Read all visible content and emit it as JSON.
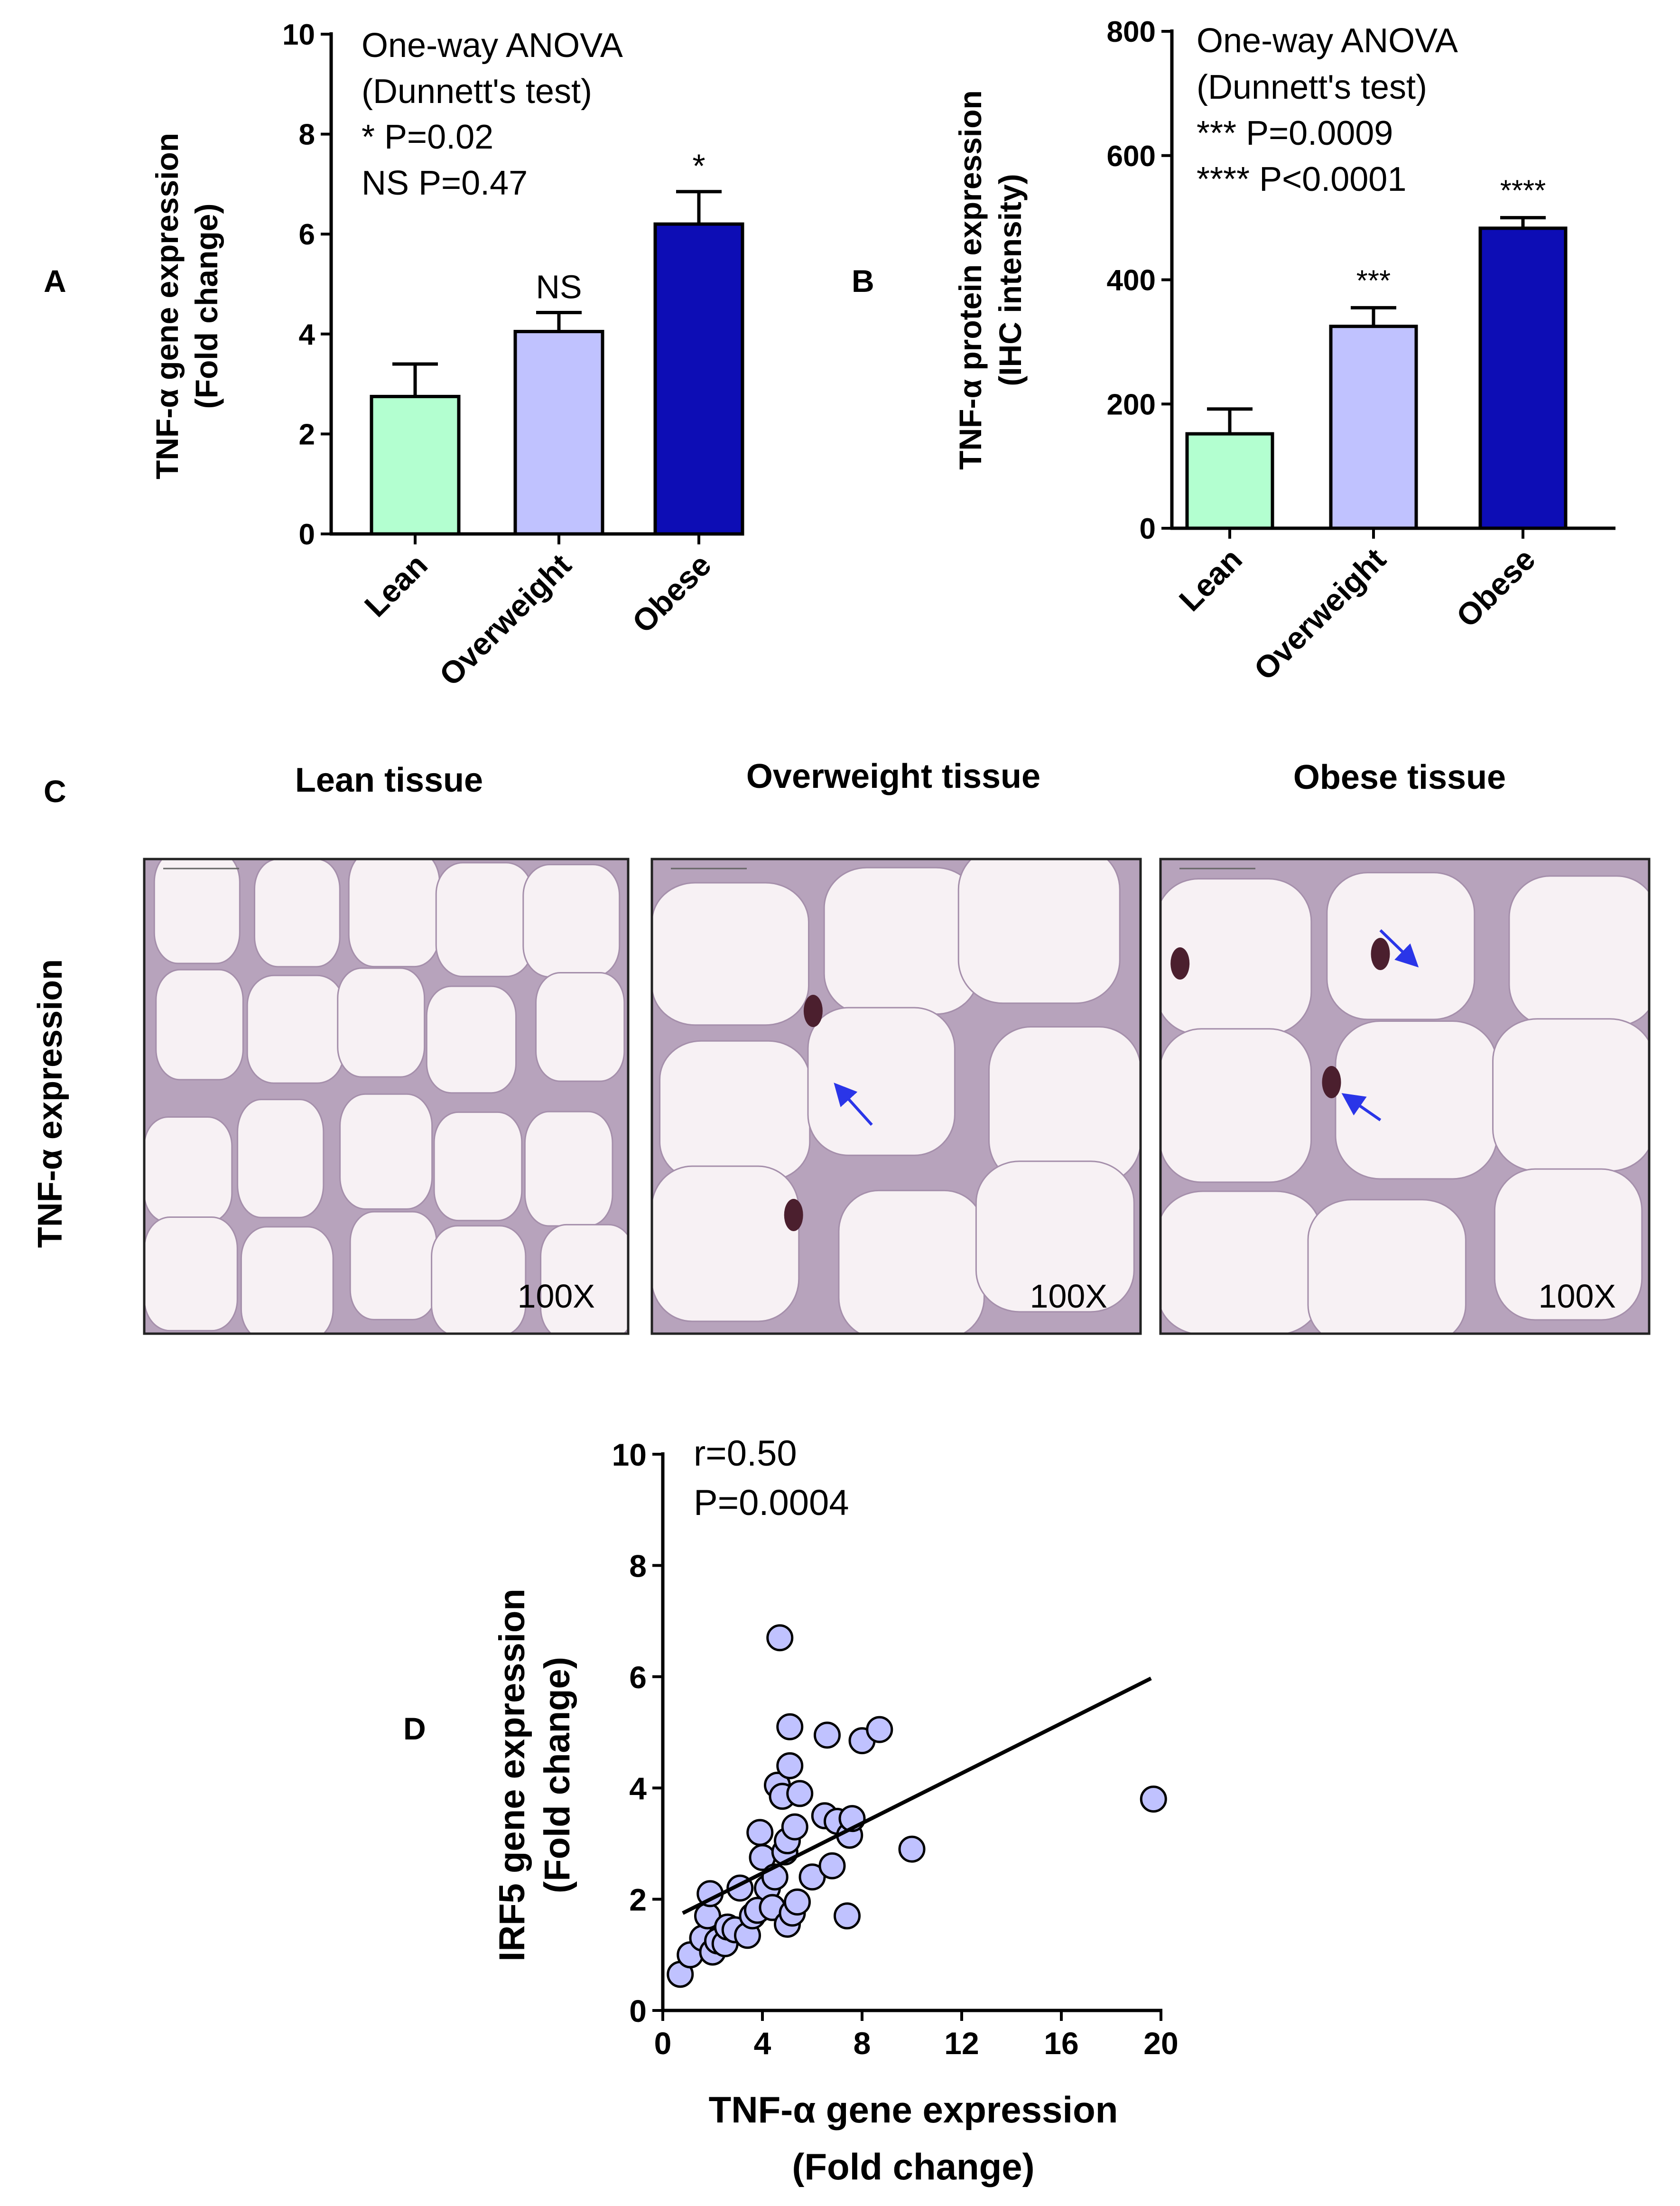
{
  "colors": {
    "lean": "#b3ffd0",
    "overweight": "#c0c2ff",
    "obese": "#0d0db5",
    "scatter_point": "#c0c2ff",
    "arrow": "#2a35e8",
    "tissue_bg": "#f7f1f4",
    "tissue_membrane": "#b7a3bc"
  },
  "panels": {
    "A": "A",
    "B": "B",
    "C": "C",
    "D": "D"
  },
  "chart_data": [
    {
      "id": "A",
      "type": "bar",
      "categories": [
        "Lean",
        "Overweight",
        "Obese"
      ],
      "values": [
        2.75,
        4.05,
        6.2
      ],
      "errors": [
        0.65,
        0.38,
        0.65
      ],
      "significance": [
        "",
        "NS",
        "*"
      ],
      "ylabel_line1": "TNF-α gene expression",
      "ylabel_line2": "(Fold change)",
      "ylim": [
        0,
        10
      ],
      "yticks": [
        "0",
        "2",
        "4",
        "6",
        "8",
        "10"
      ],
      "annotation": [
        "One-way ANOVA",
        "(Dunnett's test)",
        "* P=0.02",
        "NS P=0.47"
      ]
    },
    {
      "id": "B",
      "type": "bar",
      "categories": [
        "Lean",
        "Overweight",
        "Obese"
      ],
      "values": [
        152,
        325,
        483
      ],
      "errors": [
        40,
        30,
        17
      ],
      "significance": [
        "",
        "***",
        "****"
      ],
      "ylabel_line1": "TNF-α protein expression",
      "ylabel_line2": "(IHC intensity)",
      "ylim": [
        0,
        800
      ],
      "yticks": [
        "0",
        "200",
        "400",
        "600",
        "800"
      ],
      "annotation": [
        "One-way ANOVA",
        "(Dunnett's test)",
        "*** P=0.0009",
        "**** P<0.0001"
      ]
    },
    {
      "id": "D",
      "type": "scatter",
      "xlabel_line1": "TNF-α gene expression",
      "xlabel_line2": "(Fold change)",
      "ylabel_line1": "IRF5 gene expression",
      "ylabel_line2": "(Fold change)",
      "xlim": [
        0,
        20
      ],
      "ylim": [
        0,
        10
      ],
      "xticks": [
        "0",
        "4",
        "8",
        "12",
        "16",
        "20"
      ],
      "yticks": [
        "0",
        "2",
        "4",
        "6",
        "8",
        "10"
      ],
      "annotation": [
        "r=0.50",
        "P=0.0004"
      ],
      "fit_line": {
        "x": [
          0.8,
          19.6
        ],
        "y": [
          1.75,
          5.97
        ]
      },
      "points": [
        [
          0.7,
          0.65
        ],
        [
          1.1,
          1.0
        ],
        [
          1.6,
          1.3
        ],
        [
          1.8,
          1.7
        ],
        [
          1.9,
          2.1
        ],
        [
          2.0,
          1.05
        ],
        [
          2.2,
          1.25
        ],
        [
          2.5,
          1.2
        ],
        [
          2.6,
          1.5
        ],
        [
          2.9,
          1.45
        ],
        [
          3.1,
          2.2
        ],
        [
          3.4,
          1.35
        ],
        [
          3.6,
          1.7
        ],
        [
          3.8,
          1.8
        ],
        [
          3.9,
          3.2
        ],
        [
          4.0,
          2.75
        ],
        [
          4.2,
          2.2
        ],
        [
          4.4,
          1.85
        ],
        [
          4.5,
          2.4
        ],
        [
          4.6,
          4.05
        ],
        [
          4.7,
          6.7
        ],
        [
          4.8,
          3.85
        ],
        [
          4.9,
          2.85
        ],
        [
          5.0,
          1.55
        ],
        [
          5.0,
          3.05
        ],
        [
          5.1,
          4.4
        ],
        [
          5.1,
          5.1
        ],
        [
          5.2,
          1.75
        ],
        [
          5.3,
          3.3
        ],
        [
          5.4,
          1.95
        ],
        [
          5.5,
          3.9
        ],
        [
          6.0,
          2.4
        ],
        [
          6.5,
          3.5
        ],
        [
          6.6,
          4.95
        ],
        [
          6.8,
          2.6
        ],
        [
          7.0,
          3.4
        ],
        [
          7.4,
          1.7
        ],
        [
          7.5,
          3.15
        ],
        [
          7.6,
          3.45
        ],
        [
          8.0,
          4.85
        ],
        [
          8.7,
          5.05
        ],
        [
          10.0,
          2.9
        ],
        [
          19.7,
          3.8
        ]
      ]
    }
  ],
  "tissue": {
    "row_label": "TNF-α expression",
    "titles": [
      "Lean tissue",
      "Overweight tissue",
      "Obese tissue"
    ],
    "magnification": [
      "100X",
      "100X",
      "100X"
    ]
  }
}
